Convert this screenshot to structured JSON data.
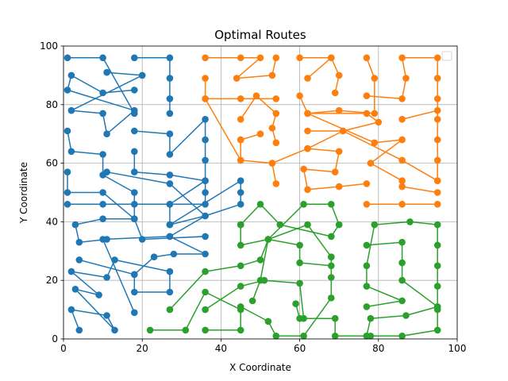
{
  "chart_data": {
    "type": "line",
    "title": "Optimal Routes",
    "xlabel": "X Coordinate",
    "ylabel": "Y Coordinate",
    "xlim": [
      0,
      100
    ],
    "ylim": [
      0,
      100
    ],
    "xticks": [
      0,
      20,
      40,
      60,
      80,
      100
    ],
    "yticks": [
      0,
      20,
      40,
      60,
      80,
      100
    ],
    "grid": true,
    "legend": "top-right, empty",
    "series": [
      {
        "color": "#1f77b4",
        "paths": [
          [
            [
              1,
              96
            ],
            [
              10,
              96
            ],
            [
              18,
              77
            ]
          ],
          [
            [
              18,
              96
            ],
            [
              27,
              96
            ],
            [
              27,
              89
            ],
            [
              27,
              82
            ],
            [
              27,
              77
            ]
          ],
          [
            [
              11,
              91
            ],
            [
              20,
              90
            ],
            [
              2,
              78
            ],
            [
              10,
              77
            ],
            [
              11,
              70
            ],
            [
              18,
              78
            ],
            [
              1,
              85
            ],
            [
              2,
              90
            ],
            [
              10,
              84
            ],
            [
              18,
              85
            ]
          ],
          [
            [
              1,
              71
            ],
            [
              2,
              64
            ],
            [
              10,
              63
            ],
            [
              10,
              56
            ],
            [
              18,
              50
            ],
            [
              18,
              41
            ],
            [
              20,
              34
            ],
            [
              36,
              35
            ]
          ],
          [
            [
              18,
              71
            ],
            [
              27,
              70
            ],
            [
              27,
              63
            ],
            [
              36,
              75
            ],
            [
              36,
              68
            ],
            [
              36,
              61
            ],
            [
              36,
              54
            ],
            [
              36,
              50
            ],
            [
              36,
              46
            ],
            [
              27,
              46
            ],
            [
              18,
              46
            ],
            [
              10,
              46
            ],
            [
              1,
              46
            ]
          ],
          [
            [
              18,
              64
            ],
            [
              18,
              57
            ],
            [
              27,
              56
            ],
            [
              36,
              54
            ],
            [
              27,
              46
            ],
            [
              27,
              39
            ],
            [
              36,
              42
            ],
            [
              45,
              46
            ],
            [
              45,
              50
            ],
            [
              45,
              54
            ],
            [
              27,
              39
            ]
          ],
          [
            [
              1,
              57
            ],
            [
              1,
              50
            ],
            [
              10,
              50
            ],
            [
              18,
              41
            ],
            [
              10,
              41
            ],
            [
              3,
              39
            ],
            [
              4,
              33
            ],
            [
              11,
              34
            ]
          ],
          [
            [
              4,
              27
            ],
            [
              18,
              22
            ],
            [
              18,
              16
            ],
            [
              27,
              16
            ],
            [
              27,
              23
            ],
            [
              13,
              27
            ],
            [
              11,
              21
            ],
            [
              2,
              23
            ],
            [
              9,
              15
            ],
            [
              3,
              17
            ],
            [
              13,
              3
            ],
            [
              11,
              8
            ],
            [
              2,
              10
            ],
            [
              4,
              3
            ]
          ],
          [
            [
              18,
              9
            ],
            [
              10,
              34
            ],
            [
              27,
              35
            ],
            [
              36,
              29
            ],
            [
              28,
              29
            ],
            [
              23,
              28
            ],
            [
              18,
              22
            ]
          ],
          [
            [
              11,
              57
            ],
            [
              27,
              53
            ],
            [
              36,
              42
            ],
            [
              27,
              35
            ]
          ]
        ]
      },
      {
        "color": "#ff7f0e",
        "paths": [
          [
            [
              36,
              96
            ],
            [
              45,
              96
            ],
            [
              50,
              96
            ],
            [
              44,
              89
            ],
            [
              53,
              90
            ],
            [
              54,
              96
            ]
          ],
          [
            [
              36,
              89
            ],
            [
              36,
              82
            ],
            [
              45,
              82
            ],
            [
              54,
              82
            ]
          ],
          [
            [
              60,
              96
            ],
            [
              68,
              96
            ],
            [
              70,
              90
            ],
            [
              69,
              84
            ]
          ],
          [
            [
              60,
              83
            ],
            [
              62,
              77
            ],
            [
              70,
              78
            ],
            [
              79,
              77
            ],
            [
              79,
              89
            ],
            [
              77,
              96
            ]
          ],
          [
            [
              62,
              89
            ],
            [
              68,
              96
            ]
          ],
          [
            [
              77,
              83
            ],
            [
              86,
              82
            ],
            [
              87,
              89
            ],
            [
              86,
              96
            ],
            [
              95,
              96
            ],
            [
              95,
              89
            ],
            [
              95,
              82
            ],
            [
              95,
              75
            ],
            [
              95,
              68
            ],
            [
              95,
              61
            ],
            [
              95,
              54
            ]
          ],
          [
            [
              86,
              75
            ],
            [
              95,
              78
            ]
          ],
          [
            [
              45,
              75
            ],
            [
              49,
              83
            ],
            [
              54,
              77
            ],
            [
              53,
              72
            ],
            [
              54,
              67
            ]
          ],
          [
            [
              45,
              68
            ],
            [
              45,
              61
            ],
            [
              53,
              60
            ],
            [
              54,
              53
            ]
          ],
          [
            [
              36,
              82
            ],
            [
              45,
              61
            ]
          ],
          [
            [
              62,
              71
            ],
            [
              71,
              71
            ],
            [
              80,
              74
            ],
            [
              77,
              77
            ],
            [
              62,
              77
            ],
            [
              79,
              67
            ],
            [
              86,
              68
            ],
            [
              78,
              60
            ],
            [
              86,
              54
            ],
            [
              86,
              52
            ],
            [
              95,
              50
            ]
          ],
          [
            [
              53,
              60
            ],
            [
              62,
              65
            ],
            [
              70,
              64
            ],
            [
              69,
              57
            ],
            [
              61,
              58
            ],
            [
              62,
              51
            ],
            [
              70,
              52
            ],
            [
              77,
              53
            ]
          ],
          [
            [
              62,
              65
            ],
            [
              71,
              71
            ],
            [
              86,
              61
            ],
            [
              95,
              54
            ]
          ],
          [
            [
              45,
              68
            ],
            [
              50,
              70
            ]
          ],
          [
            [
              77,
              46
            ],
            [
              86,
              46
            ],
            [
              95,
              46
            ]
          ]
        ]
      },
      {
        "color": "#2ca02c",
        "paths": [
          [
            [
              22,
              3
            ],
            [
              31,
              3
            ],
            [
              36,
              16
            ],
            [
              45,
              10
            ],
            [
              45,
              3
            ],
            [
              36,
              3
            ]
          ],
          [
            [
              27,
              10
            ],
            [
              36,
              23
            ],
            [
              45,
              25
            ],
            [
              50,
              27
            ],
            [
              52,
              34
            ],
            [
              60,
              32
            ],
            [
              60,
              26
            ],
            [
              68,
              25
            ]
          ],
          [
            [
              36,
              10
            ],
            [
              45,
              18
            ],
            [
              51,
              20
            ],
            [
              60,
              19
            ],
            [
              61,
              7
            ],
            [
              69,
              7
            ],
            [
              69,
              1
            ],
            [
              78,
              1
            ]
          ],
          [
            [
              45,
              39
            ],
            [
              45,
              32
            ],
            [
              52,
              34
            ],
            [
              61,
              46
            ],
            [
              68,
              46
            ],
            [
              70,
              39
            ],
            [
              68,
              35
            ],
            [
              55,
              39
            ],
            [
              50,
              46
            ],
            [
              45,
              39
            ]
          ],
          [
            [
              68,
              28
            ],
            [
              68,
              21
            ],
            [
              68,
              14
            ],
            [
              61,
              1
            ],
            [
              54,
              1
            ],
            [
              52,
              6
            ],
            [
              45,
              11
            ]
          ],
          [
            [
              48,
              13
            ],
            [
              50,
              20
            ],
            [
              52,
              34
            ],
            [
              62,
              39
            ],
            [
              68,
              28
            ]
          ],
          [
            [
              59,
              12
            ],
            [
              60,
              7
            ]
          ],
          [
            [
              77,
              1
            ],
            [
              86,
              1
            ],
            [
              95,
              3
            ],
            [
              95,
              10
            ],
            [
              95,
              11
            ],
            [
              95,
              18
            ],
            [
              95,
              25
            ],
            [
              95,
              32
            ],
            [
              95,
              39
            ],
            [
              88,
              40
            ],
            [
              79,
              39
            ],
            [
              77,
              25
            ],
            [
              77,
              18
            ],
            [
              86,
              13
            ],
            [
              77,
              11
            ]
          ],
          [
            [
              77,
              32
            ],
            [
              86,
              33
            ],
            [
              86,
              26
            ],
            [
              86,
              20
            ],
            [
              95,
              11
            ],
            [
              87,
              8
            ],
            [
              78,
              7
            ],
            [
              77,
              1
            ]
          ]
        ]
      }
    ]
  }
}
